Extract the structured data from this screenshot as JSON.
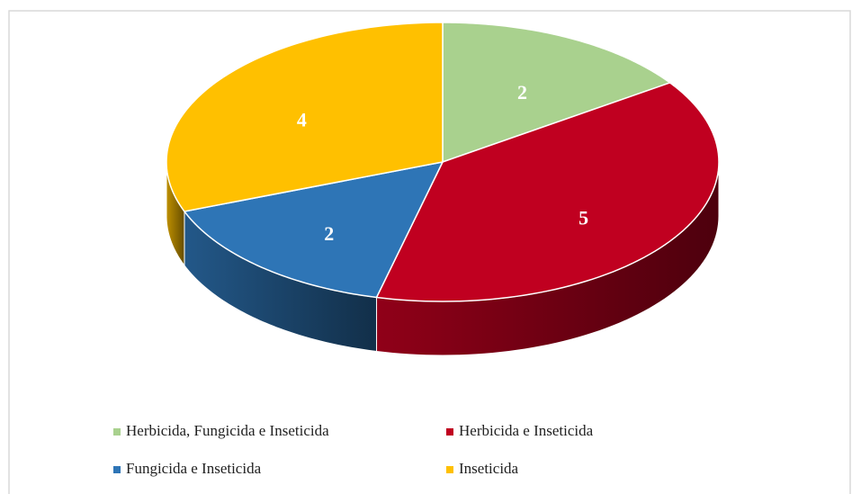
{
  "chart_data": {
    "type": "pie",
    "categories": [
      "Herbicida, Fungicida e Inseticida",
      "Herbicida e Inseticida",
      "Fungicida e Inseticida",
      "Inseticida"
    ],
    "values": [
      2,
      5,
      2,
      4
    ],
    "colors": [
      "#a9d18e",
      "#c00020",
      "#2e75b6",
      "#ffc000"
    ],
    "legend": "bottom"
  }
}
